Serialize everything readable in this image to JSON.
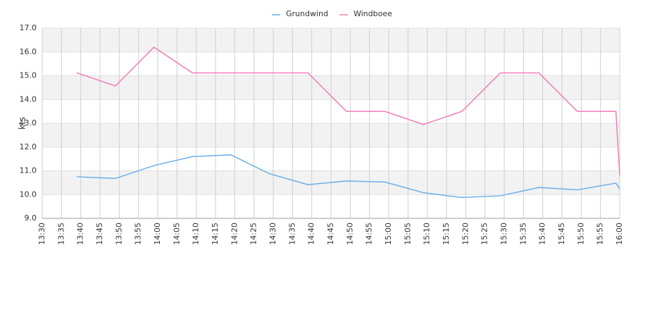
{
  "chart_data": {
    "type": "line",
    "y_label": "kts",
    "x": [
      "13:39",
      "13:49",
      "13:59",
      "14:09",
      "14:19",
      "14:29",
      "14:39",
      "14:49",
      "14:59",
      "15:09",
      "15:19",
      "15:29",
      "15:39",
      "15:49",
      "15:59",
      "16:00"
    ],
    "series": [
      {
        "name": "Grundwind",
        "color": "#6aaee8",
        "values": [
          10.75,
          10.68,
          11.22,
          11.6,
          11.67,
          10.88,
          10.42,
          10.57,
          10.53,
          10.08,
          9.88,
          9.95,
          10.3,
          10.2,
          10.48,
          10.25
        ]
      },
      {
        "name": "Windboee",
        "color": "#f07cb8",
        "values": [
          15.12,
          14.57,
          16.2,
          15.12,
          15.12,
          15.12,
          15.12,
          13.5,
          13.5,
          12.95,
          13.5,
          15.12,
          15.12,
          13.5,
          13.5,
          10.8
        ]
      }
    ],
    "xlim": [
      "13:30",
      "16:00"
    ],
    "xticks": [
      "13:30",
      "13:35",
      "13:40",
      "13:45",
      "13:50",
      "13:55",
      "14:00",
      "14:05",
      "14:10",
      "14:15",
      "14:20",
      "14:25",
      "14:30",
      "14:35",
      "14:40",
      "14:45",
      "14:50",
      "14:55",
      "15:00",
      "15:05",
      "15:10",
      "15:15",
      "15:20",
      "15:25",
      "15:30",
      "15:35",
      "15:40",
      "15:45",
      "15:50",
      "15:55",
      "16:00"
    ],
    "ylim": [
      9,
      17
    ],
    "yticks": [
      {
        "value": 9,
        "label": "9.0"
      },
      {
        "value": 10,
        "label": "10.0"
      },
      {
        "value": 11,
        "label": "11.0"
      },
      {
        "value": 12,
        "label": "12.0"
      },
      {
        "value": 13,
        "label": "13.0"
      },
      {
        "value": 14,
        "label": "14.0"
      },
      {
        "value": 15,
        "label": "15.0"
      },
      {
        "value": 16,
        "label": "16.0"
      },
      {
        "value": 17,
        "label": "17.0"
      }
    ],
    "grid": true
  }
}
